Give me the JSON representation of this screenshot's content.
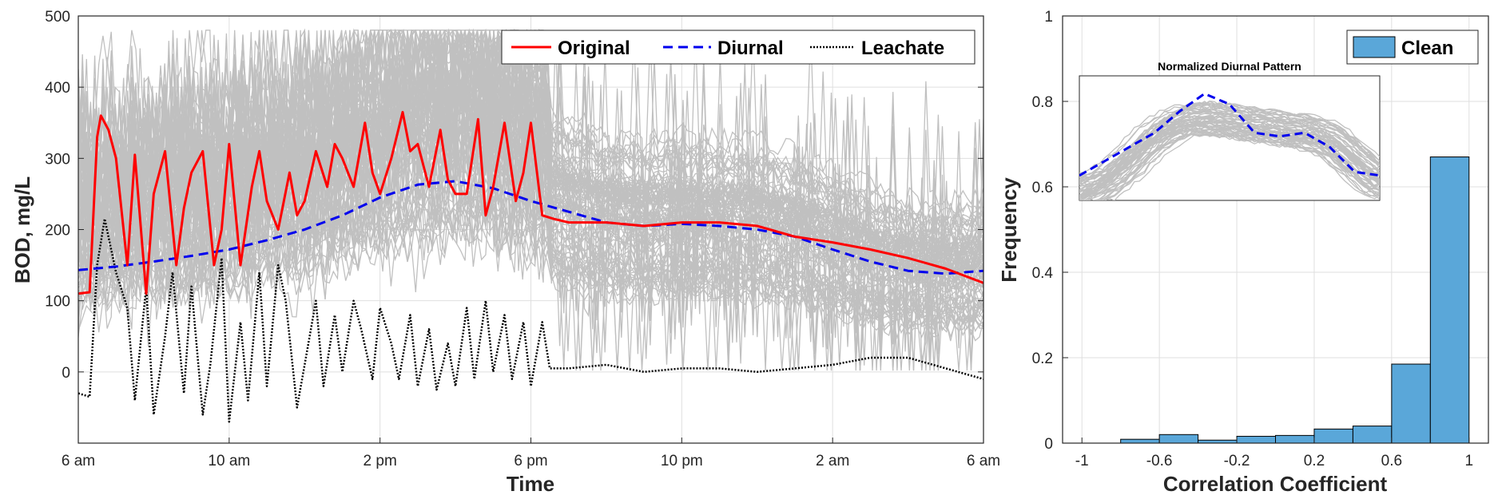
{
  "chart_data": [
    {
      "type": "line",
      "xlabel": "Time",
      "ylabel": "BOD, mg/L",
      "xlim": [
        6,
        30
      ],
      "ylim": [
        -100,
        500
      ],
      "x_ticks": [
        6,
        10,
        14,
        18,
        22,
        26,
        30
      ],
      "x_tick_labels": [
        "6 am",
        "10 am",
        "2 pm",
        "6 pm",
        "10 pm",
        "2 am",
        "6 am"
      ],
      "y_ticks": [
        0,
        100,
        200,
        300,
        400,
        500
      ],
      "grid": true,
      "legend_position": "top-right",
      "colors": {
        "original": "#ff0000",
        "diurnal": "#0000ee",
        "leachate": "#000000",
        "background": "#c0c0c0"
      },
      "series": [
        {
          "name": "Original",
          "style": "solid",
          "color": "#ff0000",
          "x": [
            6.0,
            6.3,
            6.5,
            6.6,
            6.8,
            7.0,
            7.3,
            7.5,
            7.8,
            8.0,
            8.3,
            8.6,
            8.8,
            9.0,
            9.3,
            9.6,
            9.8,
            10.0,
            10.3,
            10.6,
            10.8,
            11.0,
            11.3,
            11.6,
            11.8,
            12.0,
            12.3,
            12.6,
            12.8,
            13.0,
            13.3,
            13.6,
            13.8,
            14.0,
            14.3,
            14.6,
            14.8,
            15.0,
            15.3,
            15.6,
            15.8,
            16.0,
            16.3,
            16.6,
            16.8,
            17.0,
            17.3,
            17.6,
            17.8,
            18.0,
            18.3,
            18.6,
            19.0,
            20.0,
            21.0,
            22.0,
            23.0,
            24.0,
            25.0,
            26.0,
            27.0,
            28.0,
            29.0,
            30.0
          ],
          "values": [
            110,
            112,
            330,
            360,
            340,
            300,
            150,
            305,
            110,
            250,
            310,
            150,
            230,
            280,
            310,
            150,
            200,
            320,
            150,
            260,
            310,
            240,
            200,
            280,
            220,
            240,
            310,
            260,
            320,
            300,
            260,
            350,
            280,
            250,
            300,
            365,
            310,
            320,
            260,
            340,
            270,
            250,
            250,
            355,
            220,
            260,
            350,
            240,
            280,
            350,
            220,
            215,
            210,
            210,
            205,
            210,
            210,
            205,
            190,
            182,
            172,
            160,
            145,
            125
          ]
        },
        {
          "name": "Diurnal",
          "style": "dashed",
          "color": "#0000ee",
          "x": [
            6,
            7,
            8,
            9,
            10,
            11,
            12,
            13,
            14,
            15,
            16,
            17,
            18,
            19,
            20,
            21,
            22,
            23,
            24,
            25,
            26,
            27,
            28,
            29,
            30
          ],
          "values": [
            143,
            148,
            155,
            163,
            172,
            185,
            200,
            220,
            245,
            263,
            268,
            258,
            240,
            225,
            210,
            205,
            208,
            205,
            200,
            190,
            172,
            155,
            142,
            138,
            142
          ]
        },
        {
          "name": "Leachate",
          "style": "dotted",
          "color": "#000000",
          "x": [
            6.0,
            6.3,
            6.5,
            6.7,
            7.0,
            7.3,
            7.5,
            7.8,
            8.0,
            8.3,
            8.5,
            8.8,
            9.0,
            9.3,
            9.5,
            9.8,
            10.0,
            10.3,
            10.5,
            10.8,
            11.0,
            11.3,
            11.5,
            11.8,
            12.0,
            12.3,
            12.5,
            12.8,
            13.0,
            13.3,
            13.5,
            13.8,
            14.0,
            14.3,
            14.5,
            14.8,
            15.0,
            15.3,
            15.5,
            15.8,
            16.0,
            16.3,
            16.5,
            16.8,
            17.0,
            17.3,
            17.5,
            17.8,
            18.0,
            18.3,
            18.5,
            19.0,
            20.0,
            21.0,
            22.0,
            23.0,
            24.0,
            25.0,
            26.0,
            27.0,
            28.0,
            29.0,
            30.0
          ],
          "values": [
            -30,
            -35,
            150,
            215,
            140,
            90,
            -40,
            120,
            -60,
            50,
            140,
            -30,
            120,
            -60,
            10,
            160,
            -70,
            70,
            -40,
            140,
            -20,
            150,
            100,
            -50,
            10,
            100,
            -20,
            80,
            0,
            100,
            60,
            -10,
            90,
            40,
            -10,
            80,
            -20,
            60,
            -25,
            40,
            -20,
            90,
            -10,
            100,
            0,
            80,
            -10,
            70,
            -20,
            70,
            5,
            5,
            10,
            0,
            5,
            5,
            0,
            5,
            10,
            20,
            20,
            5,
            -10
          ]
        }
      ]
    },
    {
      "type": "bar",
      "xlabel": "Correlation Coefficient",
      "ylabel": "Frequency",
      "xlim": [
        -1.1,
        1.1
      ],
      "ylim": [
        0,
        1
      ],
      "x_ticks": [
        -1,
        -0.6,
        -0.2,
        0.2,
        0.6,
        1
      ],
      "x_tick_labels": [
        "-1",
        "-0.6",
        "-0.2",
        "0.2",
        "0.6",
        "1"
      ],
      "y_ticks": [
        0,
        0.2,
        0.4,
        0.6,
        0.8,
        1
      ],
      "y_tick_labels": [
        "0",
        "0.2",
        "0.4",
        "0.6",
        "0.8",
        "1"
      ],
      "grid": true,
      "legend_position": "top-right",
      "bin_edges": [
        -0.8,
        -0.6,
        -0.4,
        -0.2,
        0.0,
        0.2,
        0.4,
        0.6,
        0.8,
        1.0
      ],
      "series": [
        {
          "name": "Clean",
          "color": "#5aa7d9",
          "values": [
            0.009,
            0.02,
            0.007,
            0.016,
            0.018,
            0.033,
            0.04,
            0.185,
            0.67
          ]
        }
      ]
    },
    {
      "type": "line",
      "title": "Normalized Diurnal Pattern",
      "grid": false,
      "series": [
        {
          "style": "dashed",
          "color": "#0000ee",
          "values": [
            0.62,
            0.66,
            0.7,
            0.74,
            0.8,
            0.85,
            0.82,
            0.74,
            0.73,
            0.74,
            0.7,
            0.63,
            0.62
          ]
        }
      ]
    }
  ]
}
